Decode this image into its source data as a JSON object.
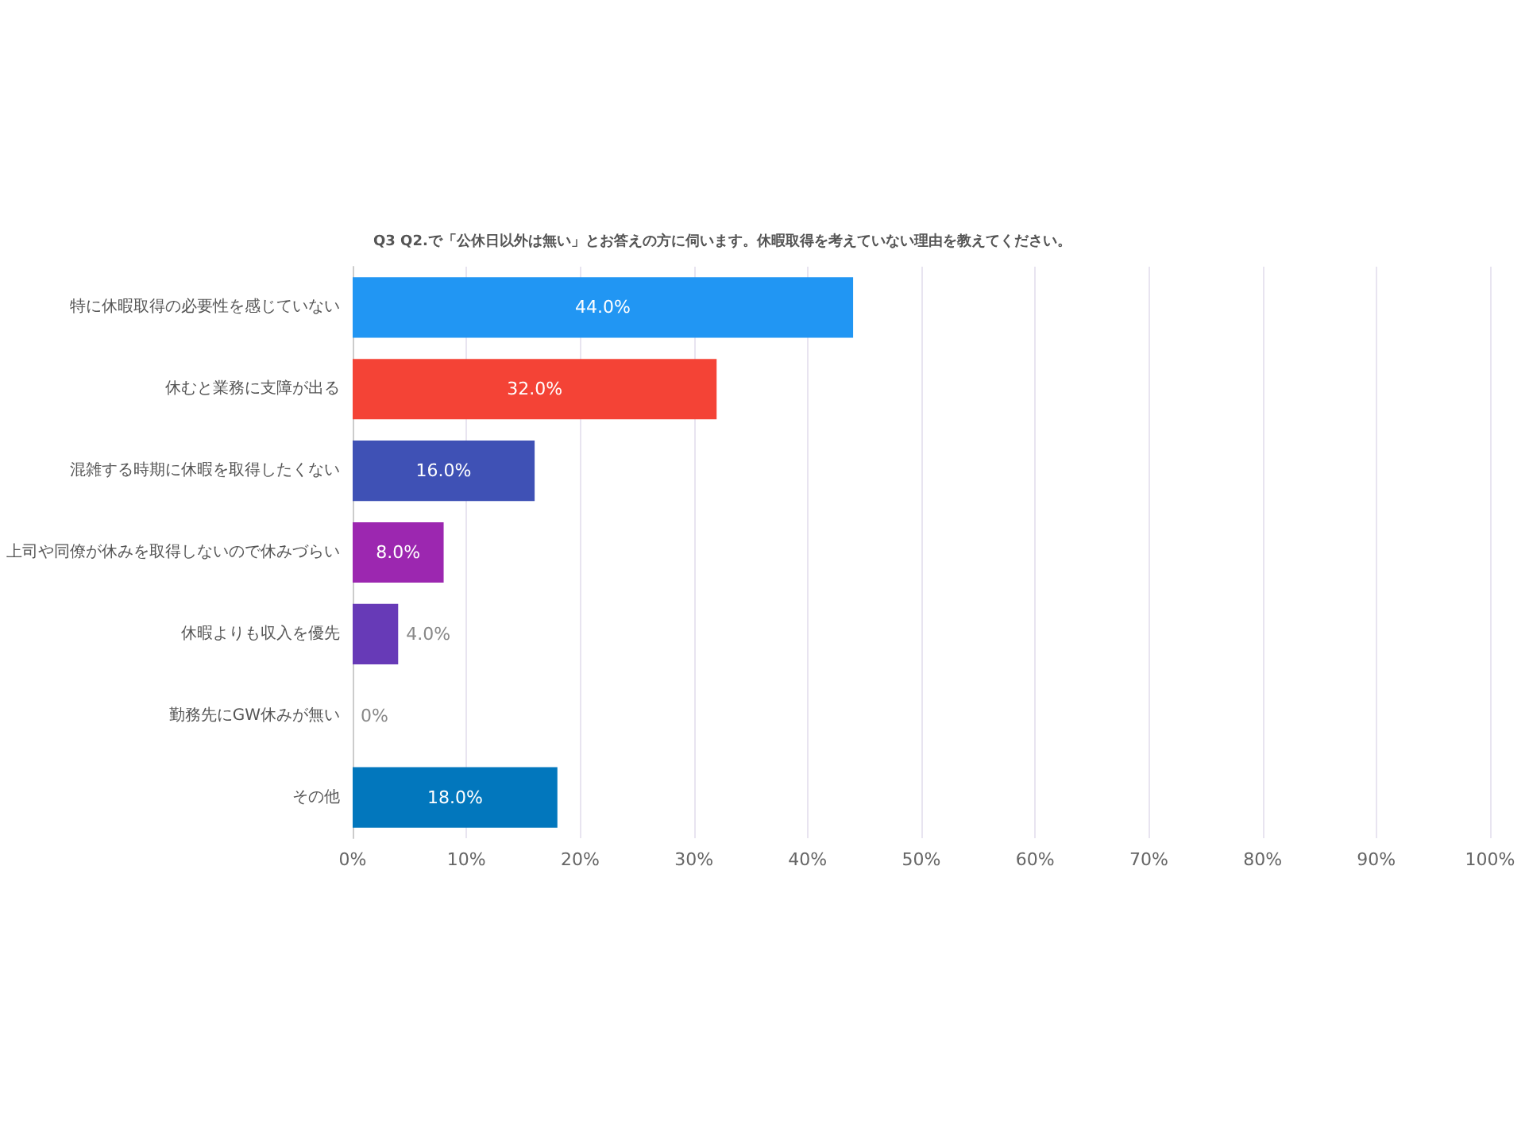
{
  "chart_data": {
    "type": "bar",
    "orientation": "horizontal",
    "title": "Q3 Q2.で「公休日以外は無い」とお答えの方に伺います。休暇取得を考えていない理由を教えてください。",
    "categories": [
      "特に休暇取得の必要性を感じていない",
      "休むと業務に支障が出る",
      "混雑する時期に休暇を取得したくない",
      "上司や同僚が休みを取得しないので休みづらい",
      "休暇よりも収入を優先",
      "勤務先にGW休みが無い",
      "その他"
    ],
    "values": [
      44.0,
      32.0,
      16.0,
      8.0,
      4.0,
      0,
      18.0
    ],
    "colors": [
      "#2196f3",
      "#f44336",
      "#3f51b5",
      "#9c27b0",
      "#673ab7",
      "#00bcd4",
      "#0277bd"
    ],
    "value_labels": [
      "44.0%",
      "32.0%",
      "16.0%",
      "8.0%",
      "4.0%",
      "0%",
      "18.0%"
    ],
    "xlim": [
      0,
      100
    ],
    "xticks": [
      {
        "value": 0,
        "label": "0%"
      },
      {
        "value": 10,
        "label": "10%"
      },
      {
        "value": 20,
        "label": "20%"
      },
      {
        "value": 30,
        "label": "30%"
      },
      {
        "value": 40,
        "label": "40%"
      },
      {
        "value": 50,
        "label": "50%"
      },
      {
        "value": 60,
        "label": "60%"
      },
      {
        "value": 70,
        "label": "70%"
      },
      {
        "value": 80,
        "label": "80%"
      },
      {
        "value": 90,
        "label": "90%"
      },
      {
        "value": 100,
        "label": "100%"
      }
    ],
    "grid": "x"
  }
}
